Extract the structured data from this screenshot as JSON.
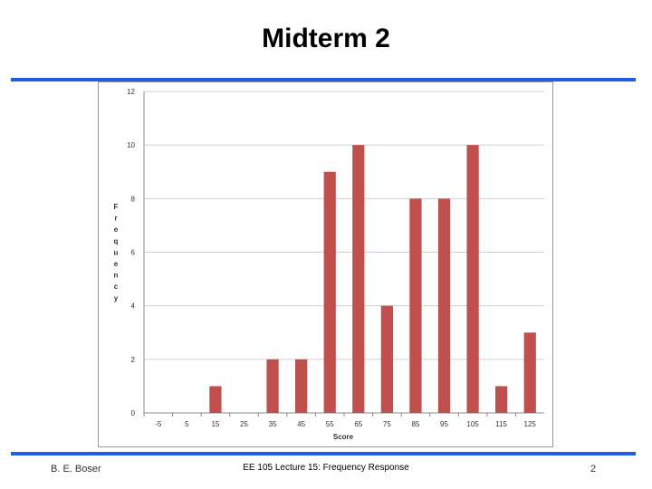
{
  "slide": {
    "title": "Midterm 2",
    "footer_left": "B. E. Boser",
    "footer_center": "EE 105 Lecture 15: Frequency Response",
    "page_number": "2",
    "accent_color": "#1f5fe0"
  },
  "chart_data": {
    "type": "bar",
    "title": "",
    "xlabel": "Score",
    "ylabel": "Frequency",
    "categories": [
      "-5",
      "5",
      "15",
      "25",
      "35",
      "45",
      "55",
      "65",
      "75",
      "85",
      "95",
      "105",
      "115",
      "125"
    ],
    "values": [
      0,
      0,
      1,
      0,
      2,
      2,
      9,
      10,
      4,
      8,
      8,
      10,
      1,
      3
    ],
    "ylim": [
      0,
      12
    ],
    "yticks": [
      0,
      2,
      4,
      6,
      8,
      10,
      12
    ],
    "grid": true,
    "legend": "none",
    "bar_color": "#c0504d"
  }
}
